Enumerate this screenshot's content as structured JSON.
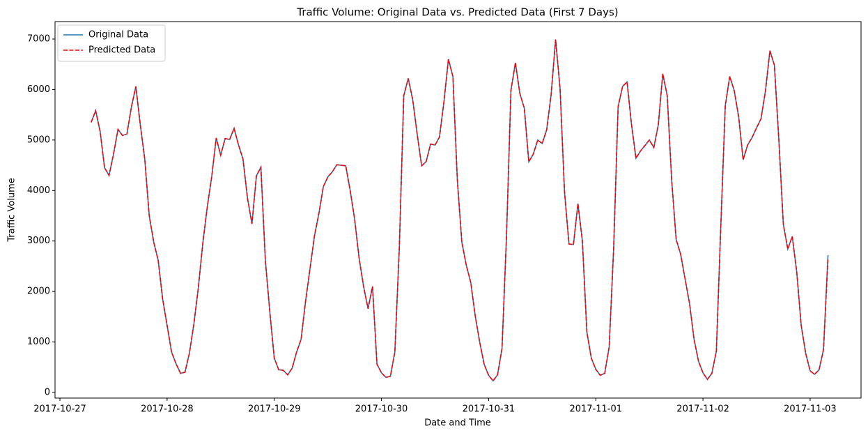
{
  "chart_data": {
    "type": "line",
    "title": "Traffic Volume: Original Data vs. Predicted Data (First 7 Days)",
    "x_label": "Date and Time",
    "y_label": "Traffic Volume",
    "x": [
      7,
      8,
      9,
      10,
      11,
      12,
      13,
      14,
      15,
      16,
      17,
      18,
      19,
      20,
      21,
      22,
      23,
      24,
      25,
      26,
      27,
      28,
      29,
      30,
      31,
      32,
      33,
      34,
      35,
      36,
      37,
      38,
      39,
      40,
      41,
      42,
      43,
      44,
      45,
      46,
      47,
      48,
      49,
      50,
      51,
      52,
      53,
      54,
      55,
      56,
      57,
      58,
      59,
      60,
      61,
      62,
      63,
      64,
      65,
      66,
      67,
      68,
      69,
      70,
      71,
      72,
      73,
      74,
      75,
      76,
      77,
      78,
      79,
      80,
      81,
      82,
      83,
      84,
      85,
      86,
      87,
      88,
      89,
      90,
      91,
      92,
      93,
      94,
      95,
      96,
      97,
      98,
      99,
      100,
      101,
      102,
      103,
      104,
      105,
      106,
      107,
      108,
      109,
      110,
      111,
      112,
      113,
      114,
      115,
      116,
      117,
      118,
      119,
      120,
      121,
      122,
      123,
      124,
      125,
      126,
      127,
      128,
      129,
      130,
      131,
      132,
      133,
      134,
      135,
      136,
      137,
      138,
      139,
      140,
      141,
      142,
      143,
      144,
      145,
      146,
      147,
      148,
      149,
      150,
      151,
      152,
      153,
      154,
      155,
      156,
      157,
      158,
      159,
      160,
      161,
      162,
      163,
      164,
      165,
      166,
      167,
      168,
      169,
      170,
      171,
      172
    ],
    "series": [
      {
        "name": "Original Data",
        "color": "#1f77b4",
        "dash": false,
        "values": [
          5350,
          5580,
          5170,
          4450,
          4300,
          4720,
          5210,
          5090,
          5120,
          5650,
          6060,
          5300,
          4620,
          3500,
          2980,
          2620,
          1850,
          1330,
          800,
          570,
          380,
          400,
          780,
          1360,
          2080,
          2960,
          3680,
          4280,
          5040,
          4700,
          5030,
          5010,
          5230,
          4900,
          4620,
          3850,
          3340,
          4290,
          4460,
          2620,
          1600,
          680,
          450,
          440,
          350,
          480,
          800,
          1050,
          1800,
          2450,
          3100,
          3550,
          4080,
          4270,
          4370,
          4510,
          4500,
          4490,
          4000,
          3430,
          2660,
          2100,
          1660,
          2100,
          560,
          390,
          300,
          320,
          800,
          2860,
          5880,
          6220,
          5800,
          5120,
          4490,
          4570,
          4920,
          4900,
          5060,
          5760,
          6600,
          6260,
          4200,
          2980,
          2520,
          2180,
          1520,
          1000,
          560,
          340,
          230,
          350,
          870,
          3080,
          5980,
          6530,
          5920,
          5630,
          4570,
          4720,
          5000,
          4930,
          5200,
          5900,
          6990,
          6020,
          3970,
          2940,
          2930,
          3740,
          3000,
          1200,
          680,
          460,
          340,
          380,
          900,
          2850,
          5660,
          6060,
          6150,
          5310,
          4640,
          4780,
          4890,
          5000,
          4850,
          5300,
          6310,
          5880,
          4200,
          3030,
          2740,
          2250,
          1760,
          1060,
          620,
          390,
          260,
          380,
          820,
          3300,
          5680,
          6260,
          5980,
          5460,
          4610,
          4900,
          5050,
          5240,
          5420,
          5970,
          6770,
          6480,
          5000,
          3330,
          2840,
          3090,
          2390,
          1330,
          780,
          430,
          360,
          450,
          850,
          2720
        ]
      },
      {
        "name": "Predicted Data",
        "color": "#ff0000",
        "dash": true,
        "values": [
          5350,
          5580,
          5170,
          4450,
          4300,
          4720,
          5210,
          5090,
          5120,
          5650,
          6060,
          5300,
          4620,
          3500,
          2980,
          2620,
          1850,
          1330,
          800,
          570,
          380,
          400,
          780,
          1360,
          2080,
          2960,
          3680,
          4280,
          5040,
          4700,
          5030,
          5010,
          5230,
          4900,
          4620,
          3850,
          3340,
          4290,
          4460,
          2620,
          1600,
          680,
          450,
          440,
          350,
          480,
          800,
          1050,
          1800,
          2450,
          3100,
          3550,
          4080,
          4270,
          4370,
          4510,
          4500,
          4490,
          4000,
          3430,
          2660,
          2100,
          1660,
          2100,
          560,
          390,
          300,
          320,
          800,
          2860,
          5880,
          6220,
          5800,
          5120,
          4490,
          4570,
          4920,
          4900,
          5060,
          5760,
          6600,
          6260,
          4200,
          2980,
          2520,
          2180,
          1520,
          1000,
          560,
          340,
          230,
          350,
          870,
          3080,
          5980,
          6530,
          5920,
          5630,
          4570,
          4720,
          5000,
          4930,
          5200,
          5900,
          6990,
          6020,
          3970,
          2940,
          2930,
          3740,
          3000,
          1200,
          680,
          460,
          340,
          380,
          900,
          2850,
          5660,
          6060,
          6150,
          5310,
          4640,
          4780,
          4890,
          5000,
          4850,
          5300,
          6310,
          5880,
          4200,
          3030,
          2740,
          2250,
          1760,
          1060,
          620,
          390,
          260,
          380,
          820,
          3300,
          5680,
          6260,
          5980,
          5460,
          4610,
          4900,
          5050,
          5240,
          5420,
          5970,
          6770,
          6480,
          5000,
          3330,
          2840,
          3090,
          2390,
          1330,
          780,
          430,
          360,
          450,
          850,
          2650
        ]
      }
    ],
    "xlim": [
      -1.1,
      179.4
    ],
    "xticks": [
      {
        "value": 0,
        "label": "2017-10-27"
      },
      {
        "value": 24,
        "label": "2017-10-28"
      },
      {
        "value": 48,
        "label": "2017-10-29"
      },
      {
        "value": 72,
        "label": "2017-10-30"
      },
      {
        "value": 96,
        "label": "2017-10-31"
      },
      {
        "value": 120,
        "label": "2017-11-01"
      },
      {
        "value": 144,
        "label": "2017-11-02"
      },
      {
        "value": 168,
        "label": "2017-11-03"
      }
    ],
    "ylim": [
      -110,
      7345
    ],
    "yticks": [
      0,
      1000,
      2000,
      3000,
      4000,
      5000,
      6000,
      7000
    ],
    "grid": false,
    "legend": "upper left"
  }
}
